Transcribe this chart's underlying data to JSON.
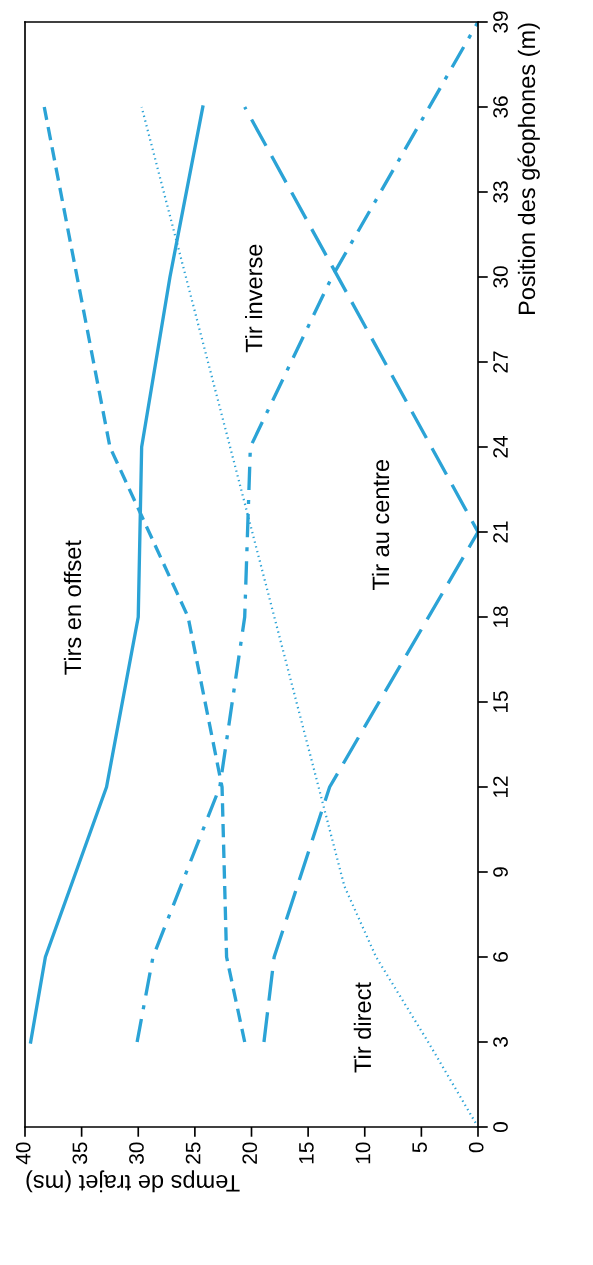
{
  "chart_data": {
    "type": "line",
    "xlabel": "Temps de trajet (ms)",
    "ylabel": "Position des géophones (m)",
    "xlim": [
      40,
      0
    ],
    "xticks": [
      40,
      35,
      30,
      25,
      20,
      15,
      10,
      5,
      0
    ],
    "ylim": [
      0,
      39
    ],
    "yticks": [
      0,
      3,
      6,
      9,
      12,
      15,
      18,
      21,
      24,
      27,
      30,
      33,
      36,
      39
    ],
    "grid": false,
    "marker": "none",
    "series": [
      {
        "color": "#2ba3d6",
        "line_style": "solid",
        "values": [
          3,
          6,
          12,
          18,
          24,
          30,
          36
        ],
        "x": [
          39.5,
          38.2,
          32.8,
          30,
          29.7,
          27.2,
          24.3
        ]
      },
      {
        "color": "#2ba3d6",
        "line_style": "dashed",
        "values": [
          3,
          6,
          12,
          18,
          24,
          36
        ],
        "x": [
          20.6,
          22.2,
          22.6,
          25.6,
          32.5,
          38.3
        ]
      },
      {
        "color": "#2ba3d6",
        "line_style": "dotted",
        "values": [
          0,
          3,
          6,
          8.5,
          36
        ],
        "x": [
          0,
          4.4,
          9,
          11.8,
          29.7
        ]
      },
      {
        "color": "#2ba3d6",
        "line_style": "dashdot",
        "values": [
          3,
          6,
          12,
          18,
          24,
          30,
          39
        ],
        "x": [
          30.1,
          28.7,
          22.8,
          20.6,
          20.1,
          12.9,
          0
        ]
      },
      {
        "color": "#2ba3d6",
        "line_style": "longdash",
        "values": [
          3,
          6,
          12,
          21,
          36
        ],
        "x": [
          18.9,
          18,
          13.1,
          0,
          20.6
        ]
      }
    ],
    "annotations": [
      "Tirs en offset",
      "Tir inverse",
      "Tir au centre",
      "Tir direct"
    ]
  }
}
